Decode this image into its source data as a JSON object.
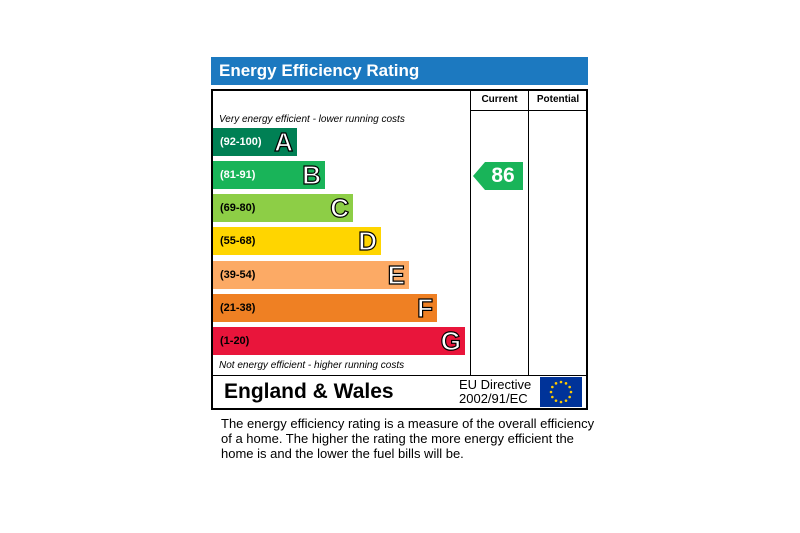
{
  "chart_data": {
    "type": "bar",
    "title": "Energy Efficiency Rating",
    "columns": [
      "Current",
      "Potential"
    ],
    "top_note": "Very energy efficient - lower running costs",
    "bottom_note": "Not energy efficient - higher running costs",
    "bands": [
      {
        "range": "(92-100)",
        "letter": "A",
        "color": "#008054",
        "text_dark": false
      },
      {
        "range": "(81-91)",
        "letter": "B",
        "color": "#19b459",
        "text_dark": false
      },
      {
        "range": "(69-80)",
        "letter": "C",
        "color": "#8dce46",
        "text_dark": true
      },
      {
        "range": "(55-68)",
        "letter": "D",
        "color": "#ffd500",
        "text_dark": true
      },
      {
        "range": "(39-54)",
        "letter": "E",
        "color": "#fcaa65",
        "text_dark": true
      },
      {
        "range": "(21-38)",
        "letter": "F",
        "color": "#ef8023",
        "text_dark": true
      },
      {
        "range": "(1-20)",
        "letter": "G",
        "color": "#e9153b",
        "text_dark": true
      }
    ],
    "current": {
      "value": "86",
      "band": "B",
      "color": "#19b459"
    },
    "potential": null
  },
  "footer": {
    "region": "England & Wales",
    "directive_line1": "EU Directive",
    "directive_line2": "2002/91/EC",
    "flag_blue": "#003399",
    "flag_stars": "#ffcc00"
  },
  "description": "The energy efficiency rating is a measure of the overall efficiency of a home.  The higher the rating the more energy efficient the home is and the lower the fuel bills will be."
}
